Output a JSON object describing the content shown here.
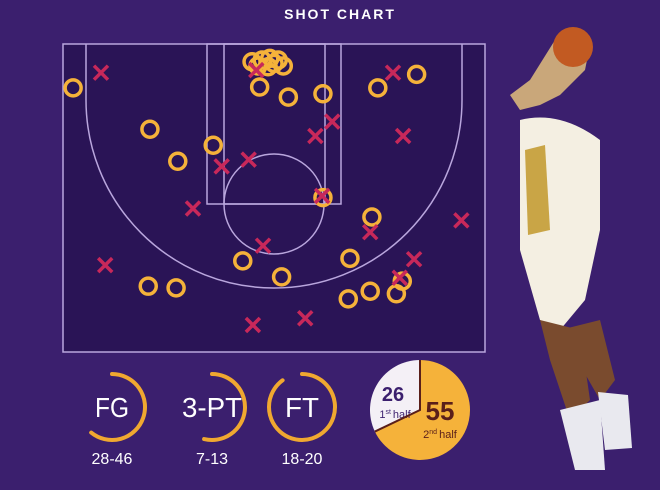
{
  "title": "SHOT CHART",
  "colors": {
    "background": "#3b1f6e",
    "court": "#2a1456",
    "made": "#f5b23a",
    "missed": "#c8285a",
    "lines": "#b9a6dd"
  },
  "chart_data": {
    "type": "scatter",
    "title": "SHOT CHART",
    "x_unit": "feet from left sideline",
    "y_unit": "feet from baseline",
    "xlim": [
      0,
      50
    ],
    "ylim": [
      0,
      36.5
    ],
    "series": [
      {
        "name": "made",
        "marker": "circle",
        "points": [
          [
            1.2,
            5.2
          ],
          [
            10.3,
            10.1
          ],
          [
            13.6,
            13.9
          ],
          [
            17.8,
            12.0
          ],
          [
            22.4,
            2.1
          ],
          [
            23.1,
            2.6
          ],
          [
            23.6,
            1.9
          ],
          [
            24.3,
            2.7
          ],
          [
            25.0,
            2.3
          ],
          [
            25.5,
            1.9
          ],
          [
            26.1,
            2.6
          ],
          [
            24.5,
            1.7
          ],
          [
            23.3,
            5.1
          ],
          [
            26.7,
            6.3
          ],
          [
            30.8,
            5.9
          ],
          [
            37.3,
            5.2
          ],
          [
            41.9,
            3.6
          ],
          [
            30.8,
            18.2
          ],
          [
            36.6,
            20.5
          ],
          [
            21.3,
            25.7
          ],
          [
            25.9,
            27.6
          ],
          [
            34.0,
            25.4
          ],
          [
            10.1,
            28.7
          ],
          [
            13.4,
            28.9
          ],
          [
            33.8,
            30.2
          ],
          [
            36.4,
            29.3
          ],
          [
            39.5,
            29.6
          ],
          [
            40.2,
            28.1
          ]
        ]
      },
      {
        "name": "missed",
        "marker": "x",
        "points": [
          [
            4.5,
            3.4
          ],
          [
            39.1,
            3.4
          ],
          [
            31.9,
            9.2
          ],
          [
            29.9,
            10.9
          ],
          [
            40.3,
            10.9
          ],
          [
            22.0,
            13.7
          ],
          [
            18.8,
            14.5
          ],
          [
            15.4,
            19.5
          ],
          [
            47.2,
            20.9
          ],
          [
            36.4,
            22.3
          ],
          [
            23.7,
            23.9
          ],
          [
            41.6,
            25.5
          ],
          [
            5.0,
            26.2
          ],
          [
            22.5,
            33.3
          ],
          [
            28.7,
            32.5
          ],
          [
            39.9,
            27.7
          ],
          [
            30.7,
            18.0
          ],
          [
            22.9,
            3.1
          ]
        ]
      }
    ]
  },
  "stats": [
    {
      "label": "FG",
      "value": "28-46",
      "made": 28,
      "attempts": 46
    },
    {
      "label": "3-PT",
      "value": "7-13",
      "made": 7,
      "attempts": 13
    },
    {
      "label": "FT",
      "value": "18-20",
      "made": 18,
      "attempts": 20
    }
  ],
  "halves": {
    "type": "pie",
    "first": {
      "points": "26",
      "label_num": "1",
      "label_sup": "st",
      "label": "half",
      "color": "#f4f0f6"
    },
    "second": {
      "points": "55",
      "label_num": "2",
      "label_sup": "nd",
      "label": "half",
      "color": "#f5b23a"
    }
  }
}
